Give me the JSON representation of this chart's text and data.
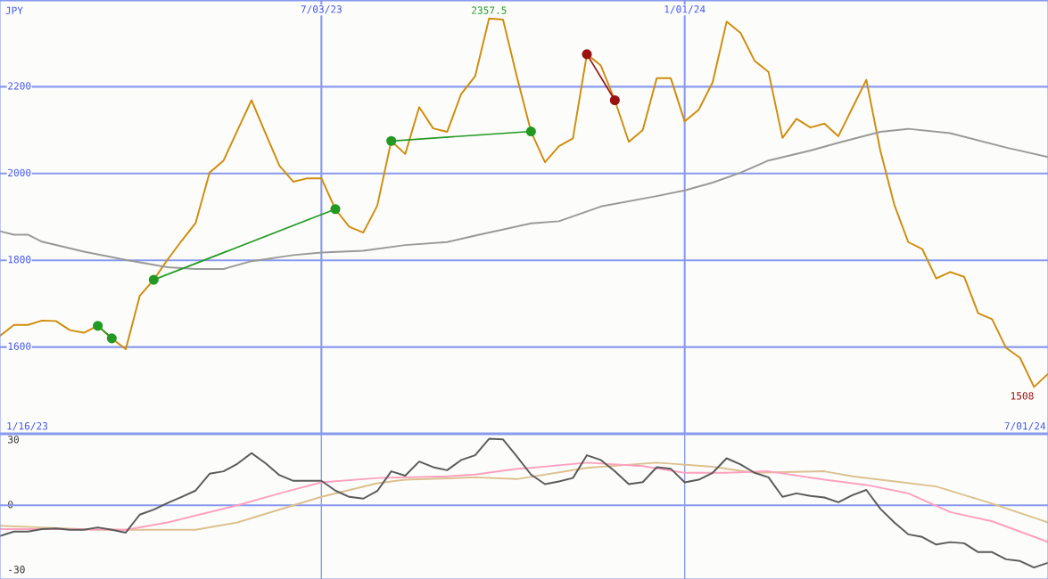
{
  "chart_data": [
    {
      "type": "line",
      "ylabel": "JPY",
      "x": [
        "2023-01-23",
        "2023-01-30",
        "2023-02-06",
        "2023-02-13",
        "2023-02-20",
        "2023-02-27",
        "2023-03-06",
        "2023-03-13",
        "2023-03-20",
        "2023-03-27",
        "2023-04-03",
        "2023-04-10",
        "2023-04-17",
        "2023-04-24",
        "2023-05-01",
        "2023-05-08",
        "2023-05-15",
        "2023-05-22",
        "2023-05-29",
        "2023-06-05",
        "2023-06-12",
        "2023-06-19",
        "2023-06-26",
        "2023-07-03",
        "2023-07-10",
        "2023-07-17",
        "2023-07-24",
        "2023-07-31",
        "2023-08-07",
        "2023-08-14",
        "2023-08-21",
        "2023-08-28",
        "2023-09-04",
        "2023-09-11",
        "2023-09-18",
        "2023-09-25",
        "2023-10-02",
        "2023-10-09",
        "2023-10-16",
        "2023-10-23",
        "2023-10-30",
        "2023-11-06",
        "2023-11-13",
        "2023-11-20",
        "2023-11-27",
        "2023-12-04",
        "2023-12-11",
        "2023-12-18",
        "2023-12-25",
        "2024-01-01",
        "2024-01-08",
        "2024-01-15",
        "2024-01-22",
        "2024-01-29",
        "2024-02-05",
        "2024-02-12",
        "2024-02-19",
        "2024-02-26",
        "2024-03-04",
        "2024-03-11",
        "2024-03-18",
        "2024-03-25",
        "2024-04-01",
        "2024-04-08",
        "2024-04-15",
        "2024-04-22",
        "2024-04-29",
        "2024-05-06",
        "2024-05-13",
        "2024-05-20",
        "2024-05-27",
        "2024-06-03",
        "2024-06-10",
        "2024-06-17",
        "2024-06-24",
        "2024-07-01"
      ],
      "series": [
        {
          "color": "#d08c0c",
          "values": [
            1626,
            1651,
            1651,
            1661,
            1660,
            1639,
            1633,
            1649,
            1620,
            1595,
            1718,
            1755,
            1802,
            1845,
            1886,
            2002,
            2030,
            2100,
            2169,
            2093,
            2018,
            1981,
            1989,
            1989,
            1918,
            1877,
            1864,
            1926,
            2075,
            2045,
            2153,
            2104,
            2096,
            2183,
            2224,
            2357.5,
            2355,
            2222,
            2097,
            2026,
            2063,
            2081,
            2275,
            2249,
            2169,
            2073,
            2100,
            2220,
            2220,
            2120,
            2147,
            2210,
            2350,
            2324,
            2260,
            2234,
            2082,
            2126,
            2106,
            2115,
            2086,
            2151,
            2216,
            2053,
            1928,
            1842,
            1826,
            1758,
            1773,
            1762,
            1678,
            1664,
            1598,
            1575,
            1508,
            1538
          ]
        },
        {
          "color": "#999999",
          "x": [
            "2023-01-23",
            "2023-01-30",
            "2023-02-06",
            "2023-02-13",
            "2023-03-06",
            "2023-03-27",
            "2023-04-17",
            "2023-05-01",
            "2023-05-15",
            "2023-05-29",
            "2023-06-19",
            "2023-07-03",
            "2023-07-24",
            "2023-08-14",
            "2023-09-04",
            "2023-09-18",
            "2023-10-16",
            "2023-10-30",
            "2023-11-20",
            "2023-12-18",
            "2024-01-01",
            "2024-01-15",
            "2024-01-29",
            "2024-02-12",
            "2024-03-04",
            "2024-03-18",
            "2024-04-08",
            "2024-04-22",
            "2024-05-13",
            "2024-06-10",
            "2024-07-01"
          ],
          "values": [
            1867,
            1859,
            1859,
            1843,
            1820,
            1801,
            1784,
            1780,
            1780,
            1798,
            1812,
            1818,
            1822,
            1835,
            1842,
            1857,
            1885,
            1890,
            1924,
            1948,
            1961,
            1979,
            2002,
            2030,
            2053,
            2071,
            2096,
            2103,
            2093,
            2060,
            2038
          ]
        },
        {
          "color": "#229922",
          "marker": "circle",
          "x": [
            "2023-03-13",
            "2023-03-20"
          ],
          "values": [
            1649,
            1620
          ]
        },
        {
          "color": "#229922",
          "marker": "circle",
          "x": [
            "2023-04-10",
            "2023-07-10"
          ],
          "values": [
            1755,
            1918
          ]
        },
        {
          "color": "#229922",
          "marker": "circle",
          "x": [
            "2023-08-07",
            "2023-10-16"
          ],
          "values": [
            2075,
            2097
          ]
        },
        {
          "color": "#991111",
          "marker": "circle",
          "x": [
            "2023-11-13",
            "2023-11-27"
          ],
          "values": [
            2275,
            2169
          ]
        }
      ],
      "xlim": [
        "2023-01-23",
        "2024-07-01"
      ],
      "xticks": [
        {
          "value": "2023-07-03",
          "label": "7/03/23"
        },
        {
          "value": "2024-01-01",
          "label": "1/01/24"
        }
      ],
      "ylim": [
        1400,
        2400
      ],
      "yticks": [
        1600,
        1800,
        2000,
        2200
      ],
      "grid": true,
      "legend": false,
      "annotations": [
        {
          "text": "2357.5",
          "x": "2023-09-25",
          "y": 2357.5
        },
        {
          "text": "1508",
          "x": "2024-06-24",
          "y": 1508
        },
        "1/16/23",
        "7/01/24"
      ]
    },
    {
      "type": "line",
      "tick_labels": "y",
      "x": [
        "2023-01-23",
        "2023-01-30",
        "2023-02-06",
        "2023-02-13",
        "2023-02-20",
        "2023-02-27",
        "2023-03-06",
        "2023-03-13",
        "2023-03-20",
        "2023-03-27",
        "2023-04-03",
        "2023-04-10",
        "2023-04-17",
        "2023-04-24",
        "2023-05-01",
        "2023-05-08",
        "2023-05-15",
        "2023-05-22",
        "2023-05-29",
        "2023-06-05",
        "2023-06-12",
        "2023-06-19",
        "2023-06-26",
        "2023-07-03",
        "2023-07-10",
        "2023-07-17",
        "2023-07-24",
        "2023-07-31",
        "2023-08-07",
        "2023-08-14",
        "2023-08-21",
        "2023-08-28",
        "2023-09-04",
        "2023-09-11",
        "2023-09-18",
        "2023-09-25",
        "2023-10-02",
        "2023-10-09",
        "2023-10-16",
        "2023-10-23",
        "2023-10-30",
        "2023-11-06",
        "2023-11-13",
        "2023-11-20",
        "2023-11-27",
        "2023-12-04",
        "2023-12-11",
        "2023-12-18",
        "2023-12-25",
        "2024-01-01",
        "2024-01-08",
        "2024-01-15",
        "2024-01-22",
        "2024-01-29",
        "2024-02-05",
        "2024-02-12",
        "2024-02-19",
        "2024-02-26",
        "2024-03-04",
        "2024-03-11",
        "2024-03-18",
        "2024-03-25",
        "2024-04-01",
        "2024-04-08",
        "2024-04-15",
        "2024-04-22",
        "2024-04-29",
        "2024-05-06",
        "2024-05-13",
        "2024-05-20",
        "2024-05-27",
        "2024-06-03",
        "2024-06-10",
        "2024-06-17",
        "2024-06-24",
        "2024-07-01"
      ],
      "series": [
        {
          "color": "#dcc08e",
          "x": [
            "2023-01-23",
            "2023-02-13",
            "2023-03-13",
            "2023-05-01",
            "2023-05-22",
            "2023-06-19",
            "2023-07-03",
            "2023-07-31",
            "2023-08-14",
            "2023-09-18",
            "2023-10-09",
            "2023-11-13",
            "2023-12-18",
            "2024-01-15",
            "2024-02-05",
            "2024-03-11",
            "2024-03-25",
            "2024-05-06",
            "2024-06-03",
            "2024-07-01"
          ],
          "values": [
            -9.4,
            -10.2,
            -11.3,
            -11.3,
            -7.9,
            0,
            3.9,
            10.2,
            11.8,
            12.9,
            12.1,
            17.3,
            19.7,
            17.8,
            15,
            15.7,
            13.4,
            8.7,
            0.8,
            -7.9
          ]
        },
        {
          "color": "#ffa0c0",
          "x": [
            "2023-01-23",
            "2023-02-20",
            "2023-03-27",
            "2023-04-17",
            "2023-05-22",
            "2023-06-12",
            "2023-07-03",
            "2023-07-31",
            "2023-09-04",
            "2023-09-18",
            "2023-10-09",
            "2023-10-16",
            "2023-11-13",
            "2023-12-11",
            "2024-01-01",
            "2024-01-22",
            "2024-02-12",
            "2024-03-11",
            "2024-04-01",
            "2024-04-22",
            "2024-05-13",
            "2024-06-03",
            "2024-07-01"
          ],
          "values": [
            -11,
            -11,
            -11.3,
            -7.9,
            0,
            5.5,
            10.6,
            12.6,
            13.4,
            14.2,
            16.9,
            17.3,
            19.7,
            18.1,
            15,
            15,
            15.7,
            11.8,
            9.4,
            5.5,
            -3.1,
            -7.4,
            -16.9
          ]
        },
        {
          "color": "#5a5a5a",
          "values": [
            -14.2,
            -12.1,
            -12.1,
            -11,
            -10.7,
            -11.3,
            -11.3,
            -10.2,
            -11.3,
            -12.6,
            -4.3,
            -2,
            1.1,
            3.9,
            6.8,
            14.6,
            15.7,
            19.2,
            24.1,
            19.4,
            13.9,
            11.3,
            11.3,
            11.3,
            6.8,
            3.9,
            3.1,
            6.6,
            15.7,
            13.7,
            20.2,
            17.6,
            16.2,
            20.9,
            23.1,
            30.7,
            30.4,
            22.5,
            14.2,
            9.8,
            11,
            12.6,
            23.1,
            20.9,
            15.7,
            9.8,
            10.7,
            17.6,
            16.9,
            10.6,
            11.8,
            15,
            21.7,
            18.9,
            15,
            12.9,
            3.9,
            5.5,
            4.3,
            3.6,
            1.4,
            4.7,
            7.1,
            -1.6,
            -7.9,
            -13.4,
            -14.6,
            -18.1,
            -17,
            -17.5,
            -21.6,
            -21.6,
            -24.9,
            -25.7,
            -28.7,
            -26.5
          ]
        }
      ],
      "xlim": [
        "2023-01-23",
        "2024-07-01"
      ],
      "xticks": [
        {
          "value": "2023-07-03",
          "label": null
        },
        {
          "value": "2024-01-01",
          "label": null
        }
      ],
      "ylim": [
        -34,
        33
      ],
      "yticks": [
        -30,
        0,
        30
      ],
      "grid": "x",
      "legend": false,
      "ref_lines": [
        {
          "axis": "y",
          "value": 0,
          "color": "#8899ee"
        }
      ]
    }
  ]
}
